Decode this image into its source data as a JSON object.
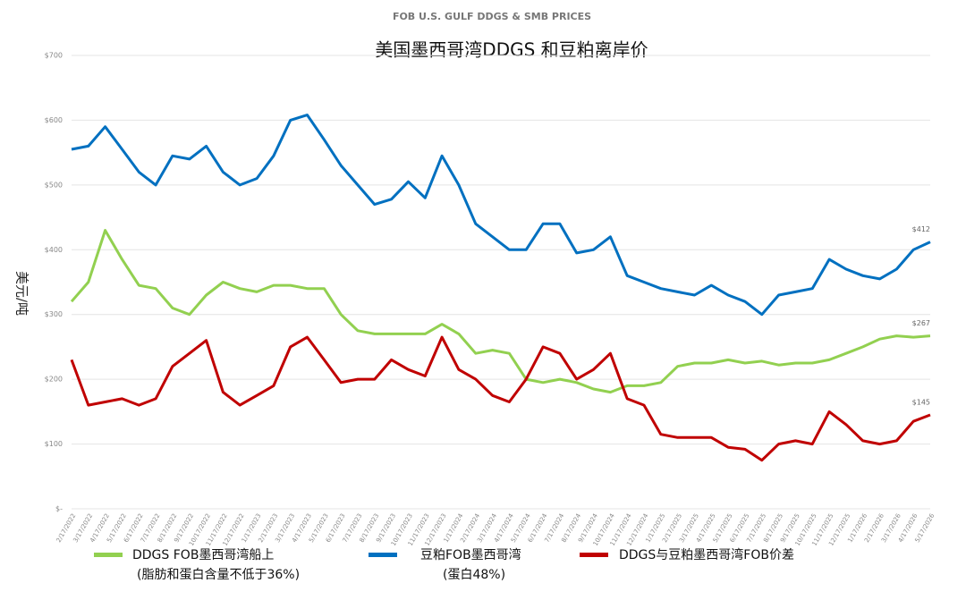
{
  "chart_data": {
    "type": "line",
    "title": "FOB U.S. GULF DDGS & SMB PRICES",
    "subtitle": "美国墨西哥湾DDGS 和豆粕离岸价",
    "y_label": "美元/吨",
    "categories": [
      "2/17/2022",
      "3/17/2022",
      "4/17/2022",
      "5/17/2022",
      "6/17/2022",
      "7/17/2022",
      "8/17/2022",
      "9/17/2022",
      "10/17/2022",
      "11/17/2022",
      "12/17/2022",
      "1/17/2023",
      "2/17/2023",
      "3/17/2023",
      "4/17/2023",
      "5/17/2023",
      "6/17/2023",
      "7/17/2023",
      "8/17/2023",
      "9/17/2023",
      "10/17/2023",
      "11/17/2023",
      "12/17/2023",
      "1/17/2024",
      "2/17/2024",
      "3/17/2024",
      "4/17/2024",
      "5/17/2024",
      "6/17/2024",
      "7/17/2024",
      "8/17/2024",
      "9/17/2024",
      "10/17/2024",
      "11/17/2024",
      "12/17/2024",
      "1/17/2025",
      "2/17/2025",
      "3/17/2025",
      "4/17/2025",
      "5/17/2025",
      "6/17/2025",
      "7/17/2025",
      "8/17/2025",
      "9/17/2025",
      "10/17/2025",
      "11/17/2025",
      "12/17/2025",
      "1/17/2026",
      "2/17/2026",
      "3/17/2026",
      "4/17/2026",
      "5/17/2026"
    ],
    "series": [
      {
        "name": [
          "DDGS FOB墨西哥湾船上",
          "(脂肪和蛋白含量不低于36%)"
        ],
        "color": "#92d050",
        "values": [
          320,
          350,
          430,
          385,
          345,
          340,
          310,
          300,
          330,
          350,
          340,
          335,
          345,
          345,
          340,
          340,
          300,
          275,
          270,
          270,
          270,
          270,
          285,
          270,
          240,
          245,
          240,
          200,
          195,
          200,
          195,
          185,
          180,
          190,
          190,
          195,
          220,
          225,
          225,
          230,
          225,
          228,
          222,
          225,
          225,
          230,
          240,
          250,
          262,
          267,
          265,
          267
        ],
        "value_labels": [
          null,
          null,
          null,
          null,
          null,
          null,
          null,
          null,
          null,
          null,
          null,
          null,
          null,
          null,
          null,
          null,
          null,
          null,
          null,
          null,
          null,
          null,
          null,
          null,
          null,
          null,
          null,
          null,
          null,
          null,
          null,
          null,
          null,
          null,
          null,
          null,
          null,
          null,
          null,
          null,
          null,
          null,
          null,
          null,
          null,
          null,
          null,
          null,
          null,
          null,
          null,
          "$267"
        ]
      },
      {
        "name": [
          "豆粕FOB墨西哥湾",
          "(蛋白48%)"
        ],
        "color": "#0070c0",
        "values": [
          555,
          560,
          590,
          555,
          520,
          500,
          545,
          540,
          560,
          520,
          500,
          510,
          545,
          600,
          608,
          570,
          530,
          500,
          470,
          478,
          505,
          480,
          545,
          500,
          440,
          420,
          400,
          400,
          440,
          440,
          395,
          400,
          420,
          360,
          350,
          340,
          335,
          330,
          345,
          330,
          320,
          300,
          330,
          335,
          340,
          385,
          370,
          360,
          355,
          370,
          400,
          412
        ],
        "value_labels": [
          null,
          null,
          null,
          null,
          null,
          null,
          null,
          null,
          null,
          null,
          null,
          null,
          null,
          null,
          null,
          null,
          null,
          null,
          null,
          null,
          null,
          null,
          null,
          null,
          null,
          null,
          null,
          null,
          null,
          null,
          null,
          null,
          null,
          null,
          null,
          null,
          null,
          null,
          null,
          null,
          null,
          null,
          null,
          null,
          null,
          null,
          null,
          null,
          null,
          null,
          null,
          "$412"
        ]
      },
      {
        "name": [
          "DDGS与豆粕墨西哥湾FOB价差"
        ],
        "color": "#c00000",
        "values": [
          230,
          160,
          165,
          170,
          160,
          170,
          220,
          240,
          260,
          180,
          160,
          175,
          190,
          250,
          265,
          230,
          195,
          200,
          200,
          230,
          215,
          205,
          265,
          215,
          200,
          175,
          165,
          200,
          250,
          240,
          200,
          215,
          240,
          170,
          160,
          115,
          110,
          110,
          110,
          95,
          92,
          75,
          100,
          105,
          100,
          150,
          130,
          105,
          100,
          105,
          135,
          145
        ],
        "value_labels": [
          null,
          null,
          null,
          null,
          null,
          null,
          null,
          null,
          null,
          null,
          null,
          null,
          null,
          null,
          null,
          null,
          null,
          null,
          null,
          null,
          null,
          null,
          null,
          null,
          null,
          null,
          null,
          null,
          null,
          null,
          null,
          null,
          null,
          null,
          null,
          null,
          null,
          null,
          null,
          null,
          null,
          null,
          null,
          null,
          null,
          null,
          null,
          null,
          null,
          null,
          null,
          "$145"
        ]
      }
    ],
    "ylim": [
      0,
      700
    ],
    "yticks": [
      {
        "value": 0,
        "label": "$-"
      },
      {
        "value": 100,
        "label": "$100"
      },
      {
        "value": 200,
        "label": "$200"
      },
      {
        "value": 300,
        "label": "$300"
      },
      {
        "value": 400,
        "label": "$400"
      },
      {
        "value": 500,
        "label": "$500"
      },
      {
        "value": 600,
        "label": "$600"
      },
      {
        "value": 700,
        "label": "$700"
      }
    ],
    "grid": true
  }
}
